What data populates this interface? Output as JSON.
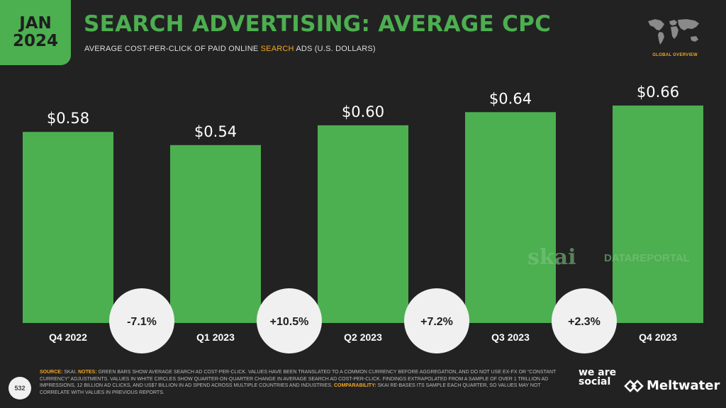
{
  "header": {
    "month": "JAN",
    "year": "2024",
    "title": "SEARCH ADVERTISING: AVERAGE CPC",
    "subtitle_pre": "AVERAGE COST-PER-CLICK OF PAID ONLINE ",
    "subtitle_hl": "SEARCH",
    "subtitle_post": " ADS (U.S. DOLLARS)",
    "global_tag": "GLOBAL OVERVIEW"
  },
  "chart_data": {
    "type": "bar",
    "categories": [
      "Q4 2022",
      "Q1 2023",
      "Q2 2023",
      "Q3 2023",
      "Q4 2023"
    ],
    "values": [
      0.58,
      0.54,
      0.6,
      0.64,
      0.66
    ],
    "value_labels": [
      "$0.58",
      "$0.54",
      "$0.60",
      "$0.64",
      "$0.66"
    ],
    "changes": [
      "-7.1%",
      "+10.5%",
      "+7.2%",
      "+2.3%"
    ],
    "title": "SEARCH ADVERTISING: AVERAGE CPC",
    "ylabel": "",
    "xlabel": "",
    "ylim": [
      0,
      0.66
    ],
    "grid": false,
    "watermarks": [
      "skai",
      "DATAREPORTAL"
    ]
  },
  "colors": {
    "bar": "#4caf50",
    "background": "#222222",
    "accent": "#f5a623",
    "circle": "#f0f0f0"
  },
  "footer": {
    "source_label": "SOURCE:",
    "source_text": " SKAI. ",
    "notes_label": "NOTES:",
    "notes_text": " GREEN BARS SHOW AVERAGE SEARCH AD COST-PER-CLICK. VALUES HAVE BEEN TRANSLATED TO A COMMON CURRENCY BEFORE AGGREGATION, AND DO NOT USE EX-FX OR “CONSTANT CURRENCY” ADJUSTMENTS. VALUES IN WHITE CIRCLES SHOW QUARTER-ON-QUARTER CHANGE IN AVERAGE SEARCH AD COST-PER-CLICK. FINDINGS EXTRAPOLATED FROM A SAMPLE OF OVER 1 TRILLION AD IMPRESSIONS, 12 BILLION AD CLICKS, AND US$7 BILLION IN AD SPEND ACROSS MULTIPLE COUNTRIES AND INDUSTRIES. ",
    "comparability_label": "COMPARABILITY:",
    "comparability_text": " SKAI RE-BASES ITS SAMPLE EACH QUARTER, SO VALUES MAY NOT CORRELATE WITH VALUES IN PREVIOUS REPORTS.",
    "page_number": "532",
    "brand1": "we are social",
    "brand2": "Meltwater"
  }
}
